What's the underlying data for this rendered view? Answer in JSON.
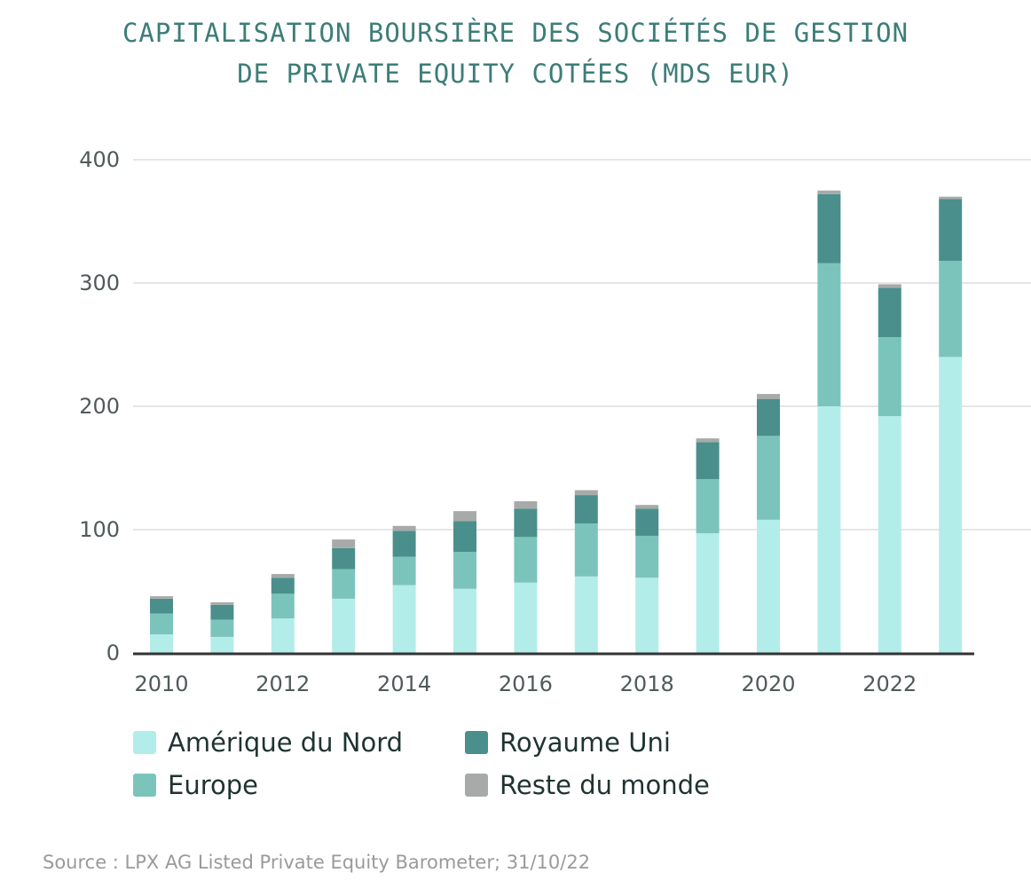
{
  "title": {
    "line1": "CAPITALISATION BOURSIÈRE DES SOCIÉTÉS DE GESTION",
    "line2": "DE PRIVATE EQUITY COTÉES (MDS EUR)"
  },
  "source": "Source :  LPX AG Listed Private Equity Barometer; 31/10/22",
  "colors": {
    "amerique": "#b3ede9",
    "europe": "#7bc4bb",
    "royaume": "#4a8f8c",
    "reste": "#a8aaaa",
    "axis": "#333333",
    "grid": "#cccccc"
  },
  "chart_data": {
    "type": "bar",
    "stacked": true,
    "categories": [
      "2010",
      "2011",
      "2012",
      "2013",
      "2014",
      "2015",
      "2016",
      "2017",
      "2018",
      "2019",
      "2020",
      "2021",
      "2022",
      "2023"
    ],
    "x_tick_labels": [
      "2010",
      "",
      "2012",
      "",
      "2014",
      "",
      "2016",
      "",
      "2018",
      "",
      "2020",
      "",
      "2022",
      ""
    ],
    "y_ticks": [
      "0",
      "100",
      "200",
      "300",
      "400"
    ],
    "ylim": [
      0,
      400
    ],
    "grid": true,
    "legend_position": "bottom",
    "series": [
      {
        "name": "Amérique du Nord",
        "color_key": "amerique",
        "values": [
          15,
          13,
          28,
          44,
          55,
          52,
          57,
          62,
          61,
          97,
          108,
          200,
          192,
          240
        ]
      },
      {
        "name": "Europe",
        "color_key": "europe",
        "values": [
          17,
          14,
          20,
          24,
          23,
          30,
          37,
          43,
          34,
          44,
          68,
          116,
          64,
          78
        ]
      },
      {
        "name": "Royaume Uni",
        "color_key": "royaume",
        "values": [
          12,
          12,
          13,
          17,
          21,
          25,
          23,
          23,
          22,
          30,
          30,
          56,
          40,
          50
        ]
      },
      {
        "name": "Reste du monde",
        "color_key": "reste",
        "values": [
          2,
          2,
          3,
          7,
          4,
          8,
          6,
          4,
          3,
          3,
          4,
          3,
          3,
          2
        ]
      }
    ]
  }
}
